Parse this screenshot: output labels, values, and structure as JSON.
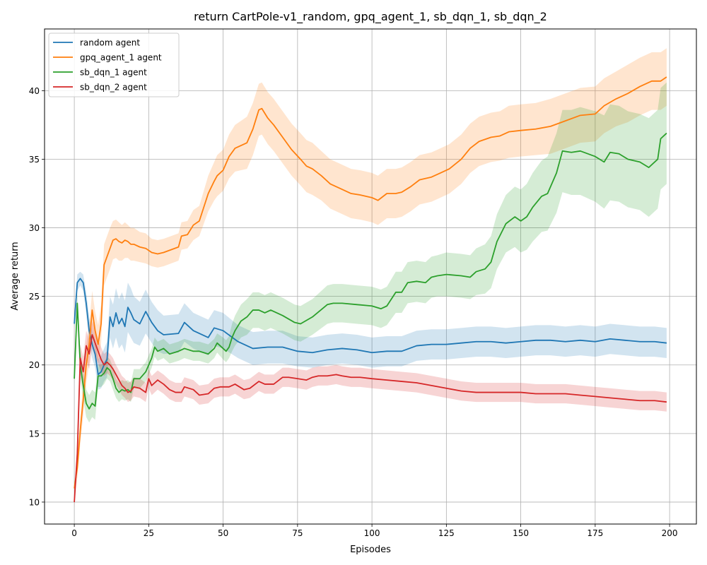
{
  "chart_data": {
    "type": "line",
    "title": "return CartPole-v1_random, gpq_agent_1, sb_dqn_1, sb_dqn_2",
    "xlabel": "Episodes",
    "ylabel": "Average return",
    "xlim": [
      -10,
      209
    ],
    "ylim": [
      8.4,
      44.5
    ],
    "xticks": [
      0,
      25,
      50,
      75,
      100,
      125,
      150,
      175,
      200
    ],
    "yticks": [
      10,
      15,
      20,
      25,
      30,
      35,
      40
    ],
    "grid": true,
    "legend_position": "upper-left",
    "series": [
      {
        "name": "random agent",
        "color": "#1f77b4",
        "x": [
          0,
          1,
          2,
          3,
          4,
          5,
          6,
          7,
          8,
          9,
          10,
          11,
          12,
          13,
          14,
          15,
          16,
          17,
          18,
          19,
          20,
          22,
          24,
          26,
          28,
          30,
          35,
          37,
          40,
          45,
          47,
          50,
          55,
          60,
          65,
          70,
          75,
          80,
          85,
          90,
          95,
          100,
          105,
          110,
          115,
          120,
          125,
          130,
          135,
          140,
          145,
          150,
          155,
          160,
          165,
          170,
          175,
          180,
          185,
          190,
          195,
          199
        ],
        "y": [
          23.0,
          26.0,
          26.3,
          26.0,
          24.5,
          22.5,
          21.5,
          20.8,
          19.3,
          19.5,
          20.0,
          20.4,
          23.5,
          22.8,
          23.8,
          23.0,
          23.4,
          22.8,
          24.2,
          23.8,
          23.3,
          23.0,
          23.9,
          23.1,
          22.5,
          22.2,
          22.3,
          23.1,
          22.5,
          22.0,
          22.7,
          22.5,
          21.7,
          21.2,
          21.3,
          21.3,
          21.0,
          20.9,
          21.1,
          21.2,
          21.1,
          20.9,
          21.0,
          21.0,
          21.4,
          21.5,
          21.5,
          21.6,
          21.7,
          21.7,
          21.6,
          21.7,
          21.8,
          21.8,
          21.7,
          21.8,
          21.7,
          21.9,
          21.8,
          21.7,
          21.7,
          21.6
        ],
        "band": [
          0.4,
          0.6,
          0.5,
          0.6,
          0.8,
          1.0,
          1.0,
          1.0,
          1.1,
          1.2,
          1.2,
          1.3,
          1.5,
          1.6,
          1.8,
          1.8,
          1.9,
          1.9,
          1.8,
          1.8,
          1.7,
          1.6,
          1.6,
          1.5,
          1.5,
          1.4,
          1.4,
          1.4,
          1.3,
          1.3,
          1.3,
          1.3,
          1.2,
          1.2,
          1.2,
          1.2,
          1.1,
          1.1,
          1.1,
          1.1,
          1.1,
          1.1,
          1.1,
          1.1,
          1.1,
          1.1,
          1.1,
          1.1,
          1.1,
          1.1,
          1.1,
          1.1,
          1.1,
          1.1,
          1.1,
          1.1,
          1.1,
          1.1,
          1.1,
          1.1,
          1.1,
          1.1
        ]
      },
      {
        "name": "gpq_agent_1 agent",
        "color": "#ff7f0e",
        "x": [
          0,
          1,
          2,
          3,
          4,
          5,
          6,
          7,
          8,
          9,
          10,
          12,
          13,
          14,
          15,
          16,
          17,
          18,
          19,
          20,
          22,
          24,
          26,
          28,
          30,
          35,
          36,
          38,
          40,
          42,
          45,
          47,
          48,
          50,
          52,
          54,
          56,
          58,
          60,
          62,
          63,
          65,
          67,
          70,
          73,
          76,
          78,
          80,
          83,
          86,
          90,
          93,
          96,
          100,
          102,
          105,
          108,
          110,
          113,
          116,
          120,
          123,
          126,
          130,
          133,
          136,
          140,
          143,
          146,
          150,
          155,
          160,
          165,
          170,
          175,
          178,
          182,
          186,
          190,
          194,
          197,
          199
        ],
        "y": [
          11.0,
          12.5,
          15.2,
          17.5,
          20.0,
          21.5,
          24.0,
          22.5,
          21.5,
          23.0,
          27.3,
          28.5,
          29.1,
          29.2,
          29.0,
          28.9,
          29.1,
          29.0,
          28.8,
          28.8,
          28.6,
          28.5,
          28.2,
          28.1,
          28.2,
          28.6,
          29.4,
          29.5,
          30.2,
          30.5,
          32.5,
          33.4,
          33.8,
          34.2,
          35.2,
          35.8,
          36.0,
          36.2,
          37.2,
          38.6,
          38.7,
          38.0,
          37.5,
          36.6,
          35.7,
          35.0,
          34.5,
          34.3,
          33.8,
          33.2,
          32.8,
          32.5,
          32.4,
          32.2,
          32.0,
          32.5,
          32.5,
          32.6,
          33.0,
          33.5,
          33.7,
          34.0,
          34.3,
          35.0,
          35.8,
          36.3,
          36.6,
          36.7,
          37.0,
          37.1,
          37.2,
          37.4,
          37.8,
          38.2,
          38.3,
          38.9,
          39.4,
          39.8,
          40.3,
          40.7,
          40.7,
          41.0
        ],
        "band": [
          0.5,
          0.8,
          1.0,
          1.2,
          1.4,
          1.4,
          1.4,
          1.4,
          1.4,
          1.4,
          1.5,
          1.5,
          1.4,
          1.4,
          1.4,
          1.3,
          1.3,
          1.2,
          1.2,
          1.2,
          1.1,
          1.1,
          1.0,
          1.0,
          1.0,
          1.0,
          1.0,
          1.0,
          1.1,
          1.1,
          1.3,
          1.4,
          1.5,
          1.5,
          1.6,
          1.7,
          1.8,
          1.9,
          1.9,
          1.9,
          1.9,
          1.9,
          1.9,
          1.9,
          1.9,
          1.9,
          1.9,
          1.9,
          1.8,
          1.8,
          1.8,
          1.8,
          1.8,
          1.8,
          1.8,
          1.8,
          1.8,
          1.8,
          1.8,
          1.8,
          1.8,
          1.8,
          1.8,
          1.8,
          1.8,
          1.8,
          1.8,
          1.8,
          1.9,
          1.9,
          1.9,
          2.0,
          2.0,
          2.0,
          2.0,
          2.0,
          2.0,
          2.1,
          2.1,
          2.1,
          2.1,
          2.1
        ]
      },
      {
        "name": "sb_dqn_1 agent",
        "color": "#2ca02c",
        "x": [
          0,
          1,
          2,
          3,
          4,
          5,
          6,
          7,
          8,
          9,
          10,
          11,
          12,
          13,
          14,
          15,
          16,
          17,
          18,
          19,
          20,
          22,
          24,
          26,
          27,
          28,
          30,
          32,
          35,
          37,
          40,
          42,
          45,
          47,
          48,
          50,
          51,
          52,
          53,
          54,
          56,
          58,
          60,
          62,
          64,
          66,
          70,
          74,
          76,
          80,
          85,
          87,
          90,
          95,
          100,
          103,
          105,
          108,
          110,
          112,
          115,
          118,
          120,
          122,
          125,
          130,
          133,
          135,
          138,
          140,
          142,
          145,
          148,
          150,
          152,
          154,
          157,
          159,
          162,
          164,
          167,
          170,
          175,
          178,
          180,
          183,
          186,
          190,
          193,
          196,
          197,
          199
        ],
        "y": [
          19.0,
          24.5,
          20.0,
          18.5,
          17.2,
          16.8,
          17.2,
          17.0,
          19.2,
          19.2,
          19.4,
          19.8,
          19.6,
          19.0,
          18.3,
          18.0,
          18.2,
          18.1,
          18.2,
          18.0,
          19.0,
          19.0,
          19.5,
          20.5,
          21.3,
          21.0,
          21.2,
          20.8,
          21.0,
          21.2,
          21.0,
          21.0,
          20.8,
          21.2,
          21.6,
          21.2,
          21.0,
          21.3,
          22.0,
          22.5,
          23.2,
          23.5,
          24.0,
          24.0,
          23.8,
          24.0,
          23.6,
          23.1,
          23.0,
          23.5,
          24.4,
          24.5,
          24.5,
          24.4,
          24.3,
          24.1,
          24.3,
          25.3,
          25.3,
          26.0,
          26.1,
          26.0,
          26.4,
          26.5,
          26.6,
          26.5,
          26.4,
          26.8,
          27.0,
          27.5,
          29.0,
          30.3,
          30.8,
          30.5,
          30.8,
          31.5,
          32.3,
          32.5,
          34.0,
          35.6,
          35.5,
          35.6,
          35.2,
          34.8,
          35.5,
          35.4,
          35.0,
          34.8,
          34.4,
          35.0,
          36.5,
          36.9
        ],
        "band": [
          0.4,
          0.8,
          1.0,
          1.0,
          1.0,
          1.0,
          1.0,
          1.0,
          0.8,
          0.8,
          0.8,
          0.8,
          0.8,
          0.8,
          0.7,
          0.7,
          0.7,
          0.7,
          0.7,
          0.7,
          0.7,
          0.7,
          0.7,
          0.7,
          0.7,
          0.7,
          0.7,
          0.7,
          0.7,
          0.7,
          0.7,
          0.7,
          0.7,
          0.7,
          0.7,
          0.8,
          0.8,
          0.8,
          1.0,
          1.1,
          1.2,
          1.3,
          1.3,
          1.3,
          1.3,
          1.3,
          1.3,
          1.3,
          1.3,
          1.3,
          1.4,
          1.4,
          1.4,
          1.4,
          1.4,
          1.4,
          1.4,
          1.5,
          1.5,
          1.5,
          1.5,
          1.5,
          1.5,
          1.5,
          1.6,
          1.6,
          1.6,
          1.7,
          1.8,
          1.9,
          2.0,
          2.1,
          2.2,
          2.3,
          2.4,
          2.5,
          2.6,
          2.7,
          2.9,
          3.0,
          3.1,
          3.2,
          3.3,
          3.4,
          3.5,
          3.5,
          3.5,
          3.5,
          3.6,
          3.6,
          3.7,
          3.7
        ]
      },
      {
        "name": "sb_dqn_2 agent",
        "color": "#d62728",
        "x": [
          0,
          1,
          2,
          3,
          4,
          5,
          6,
          7,
          8,
          9,
          10,
          11,
          12,
          13,
          14,
          15,
          16,
          17,
          18,
          19,
          20,
          22,
          24,
          25,
          26,
          28,
          30,
          32,
          34,
          36,
          37,
          40,
          42,
          45,
          47,
          49,
          52,
          54,
          57,
          59,
          62,
          64,
          67,
          70,
          72,
          75,
          78,
          80,
          82,
          85,
          88,
          90,
          93,
          96,
          100,
          105,
          110,
          115,
          120,
          125,
          130,
          135,
          140,
          145,
          150,
          155,
          160,
          165,
          170,
          175,
          180,
          185,
          190,
          195,
          199
        ],
        "y": [
          10.0,
          13.5,
          20.5,
          19.5,
          21.4,
          20.8,
          22.2,
          21.6,
          21.0,
          20.4,
          20.0,
          20.2,
          20.0,
          19.7,
          19.3,
          18.9,
          18.5,
          18.3,
          18.0,
          18.1,
          18.4,
          18.3,
          18.0,
          19.0,
          18.5,
          18.9,
          18.6,
          18.2,
          18.0,
          18.0,
          18.4,
          18.2,
          17.8,
          17.9,
          18.3,
          18.4,
          18.4,
          18.6,
          18.2,
          18.3,
          18.8,
          18.6,
          18.6,
          19.1,
          19.1,
          19.0,
          18.9,
          19.1,
          19.2,
          19.2,
          19.3,
          19.2,
          19.1,
          19.1,
          19.0,
          18.9,
          18.8,
          18.7,
          18.5,
          18.3,
          18.1,
          18.0,
          18.0,
          18.0,
          18.0,
          17.9,
          17.9,
          17.9,
          17.8,
          17.7,
          17.6,
          17.5,
          17.4,
          17.4,
          17.3
        ],
        "band": [
          0.4,
          0.8,
          1.0,
          1.1,
          1.1,
          1.1,
          1.0,
          1.0,
          0.9,
          0.9,
          0.8,
          0.8,
          0.8,
          0.8,
          0.7,
          0.7,
          0.7,
          0.7,
          0.7,
          0.7,
          0.7,
          0.7,
          0.7,
          0.7,
          0.7,
          0.7,
          0.7,
          0.7,
          0.7,
          0.7,
          0.7,
          0.7,
          0.7,
          0.7,
          0.7,
          0.7,
          0.7,
          0.7,
          0.7,
          0.7,
          0.7,
          0.7,
          0.7,
          0.7,
          0.7,
          0.7,
          0.7,
          0.7,
          0.7,
          0.7,
          0.7,
          0.7,
          0.7,
          0.7,
          0.7,
          0.7,
          0.7,
          0.7,
          0.7,
          0.7,
          0.7,
          0.7,
          0.7,
          0.7,
          0.7,
          0.7,
          0.7,
          0.7,
          0.7,
          0.7,
          0.7,
          0.7,
          0.7,
          0.7,
          0.7
        ]
      }
    ]
  }
}
